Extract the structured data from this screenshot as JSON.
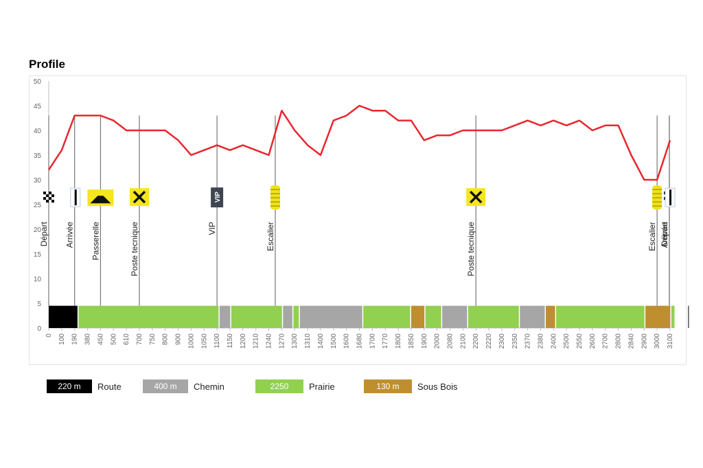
{
  "title": "Profile",
  "chart_data": {
    "type": "line",
    "ylim": [
      0,
      50
    ],
    "yticks": [
      0,
      5,
      10,
      15,
      20,
      25,
      30,
      35,
      40,
      45,
      50
    ],
    "x_tick_labels": [
      "0",
      "100",
      "190",
      "380",
      "450",
      "500",
      "610",
      "700",
      "750",
      "800",
      "900",
      "1000",
      "1050",
      "1100",
      "1150",
      "1200",
      "1210",
      "1240",
      "1270",
      "1300",
      "1310",
      "1400",
      "1500",
      "1600",
      "1680",
      "1700",
      "1770",
      "1800",
      "1850",
      "1900",
      "2000",
      "2080",
      "2100",
      "2200",
      "2220",
      "2300",
      "2350",
      "2370",
      "2380",
      "2400",
      "2500",
      "2550",
      "2600",
      "2700",
      "2800",
      "2840",
      "2900",
      "3000",
      "3100"
    ],
    "x_start_index": [
      0,
      0.5,
      1,
      1.5,
      2,
      2.5,
      3,
      3.5,
      4,
      4.5,
      5,
      5.5,
      6,
      6.5,
      7,
      7.5,
      8,
      8.5,
      9,
      9.5,
      10,
      10.5,
      11,
      11.5,
      12,
      12.5,
      13,
      13.5,
      14,
      14.5,
      15,
      15.5,
      16,
      16.5,
      17,
      17.5,
      18,
      18.5,
      19,
      19.5,
      20,
      20.5,
      21,
      21.5,
      22,
      22.5,
      23,
      23.5,
      24,
      24.5,
      25,
      25.5,
      26,
      26.5,
      27,
      27.5,
      28,
      28.5,
      29,
      29.5,
      30,
      30.5,
      31,
      31.5,
      32,
      32.5,
      33,
      33.5,
      34,
      34.5,
      35,
      35.5,
      36,
      36.5,
      37,
      37.5,
      38,
      38.5,
      39,
      39.5,
      40,
      40.5,
      41,
      41.5,
      42,
      42.5,
      43,
      43.5,
      44,
      44.5,
      45,
      45.5,
      46,
      46.5,
      47,
      47.5,
      48
    ],
    "series": [
      {
        "color": "#e8262e",
        "values": [
          32,
          34,
          36,
          39.5,
          43,
          43,
          43,
          43,
          43,
          42.5,
          42,
          41,
          40,
          40,
          40,
          40,
          40,
          40,
          40,
          39,
          38,
          36.5,
          35,
          35.5,
          36,
          36.5,
          37,
          36.5,
          36,
          36.5,
          37,
          36.5,
          36,
          35.5,
          35,
          39.5,
          44,
          42,
          40,
          38.5,
          37,
          36,
          35,
          38.5,
          42,
          42.5,
          43,
          44,
          45,
          44.5,
          44,
          44,
          44,
          43,
          42,
          42,
          42,
          40,
          38,
          38.5,
          39,
          39,
          39,
          39.5,
          40,
          40,
          40,
          40,
          40,
          40,
          40,
          40.5,
          41,
          41.5,
          42,
          41.5,
          41,
          41.5,
          42,
          41.5,
          41,
          41.5,
          42,
          41,
          40,
          40.5,
          41,
          41,
          41,
          38,
          35,
          32.5,
          30,
          30,
          30,
          34,
          38,
          35,
          32,
          37,
          42
        ]
      }
    ],
    "markers": [
      {
        "label": "Départ",
        "x": 0,
        "icon": "checkered-flag-icon"
      },
      {
        "label": "Arrivée",
        "x": 2,
        "icon": "finish-gate-icon"
      },
      {
        "label": "Passerelle",
        "x": 4,
        "icon": "footbridge-icon"
      },
      {
        "label": "Poste tecnique",
        "x": 7,
        "icon": "tools-icon"
      },
      {
        "label": "VIP",
        "x": 13,
        "icon": "vip-icon",
        "icon_text": "VIP"
      },
      {
        "label": "Escalier",
        "x": 17.5,
        "icon": "stairs-icon"
      },
      {
        "label": "Poste tecnique",
        "x": 33,
        "icon": "tools-icon"
      },
      {
        "label": "Escalier",
        "x": 47,
        "icon": "stairs-icon"
      },
      {
        "label": "Départ",
        "x": 49,
        "icon": "checkered-flag-icon"
      },
      {
        "label": "Arrivée",
        "x": 50,
        "icon": "finish-gate-icon"
      }
    ],
    "surface_segments": [
      {
        "type": "Route",
        "start": 0,
        "end": 2.3
      },
      {
        "type": "Prairie",
        "start": 2.3,
        "end": 13.2
      },
      {
        "type": "Chemin",
        "start": 13.2,
        "end": 14.1
      },
      {
        "type": "Prairie",
        "start": 14.1,
        "end": 18.1
      },
      {
        "type": "Chemin",
        "start": 18.1,
        "end": 18.9
      },
      {
        "type": "Prairie",
        "start": 18.9,
        "end": 19.4
      },
      {
        "type": "Chemin",
        "start": 19.4,
        "end": 24.3
      },
      {
        "type": "Prairie",
        "start": 24.3,
        "end": 28
      },
      {
        "type": "Sous Bois",
        "start": 28,
        "end": 29.1
      },
      {
        "type": "Prairie",
        "start": 29.1,
        "end": 30.4
      },
      {
        "type": "Chemin",
        "start": 30.4,
        "end": 32.4
      },
      {
        "type": "Prairie",
        "start": 32.4,
        "end": 36.4
      },
      {
        "type": "Chemin",
        "start": 36.4,
        "end": 38.4
      },
      {
        "type": "Sous Bois",
        "start": 38.4,
        "end": 39.2
      },
      {
        "type": "Prairie",
        "start": 39.2,
        "end": 46.1
      },
      {
        "type": "Sous Bois",
        "start": 46.1,
        "end": 48.1
      },
      {
        "type": "Prairie",
        "start": 48.1,
        "end": 49.4
      },
      {
        "type": "Route",
        "start": 49.4,
        "end": 50.3
      }
    ],
    "surface_colors": {
      "Route": "#000000",
      "Chemin": "#a6a6a6",
      "Prairie": "#92d050",
      "Sous Bois": "#bf8f2f"
    }
  },
  "legend": [
    {
      "value": "220 m",
      "label": "Route",
      "color": "#000000"
    },
    {
      "value": "400 m",
      "label": "Chemin",
      "color": "#a6a6a6"
    },
    {
      "value": "2250",
      "label": "Prairie",
      "color": "#92d050"
    },
    {
      "value": "130 m",
      "label": "Sous Bois",
      "color": "#bf8f2f"
    }
  ]
}
